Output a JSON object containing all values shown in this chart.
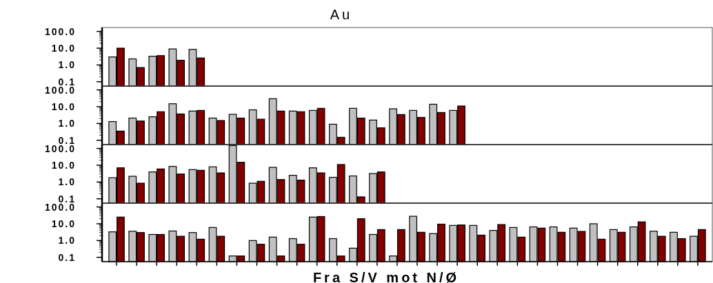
{
  "chart_data": [
    {
      "type": "bar",
      "title": "Au",
      "log": true,
      "tick_labels": "y",
      "ylim": [
        0.055,
        170
      ],
      "yticks": [
        {
          "value": 0.1,
          "label": "0.1"
        },
        {
          "value": 1,
          "label": "1.0"
        },
        {
          "value": 10,
          "label": "10.0"
        },
        {
          "value": 100,
          "label": "100.0"
        }
      ],
      "categories": [
        null,
        null,
        null,
        null,
        null,
        null,
        null,
        null,
        null,
        null,
        null,
        null,
        null,
        null,
        null,
        null,
        null,
        null,
        null,
        null,
        null,
        null,
        null,
        null,
        null,
        null,
        null,
        null,
        null,
        null
      ],
      "series": [
        {
          "color": "#c0c0c0",
          "values": [
            3,
            2.3,
            3.3,
            9,
            8.5,
            null,
            null,
            null,
            null,
            null,
            null,
            null,
            null,
            null,
            null,
            null,
            null,
            null,
            null,
            null,
            null,
            null,
            null,
            null,
            null,
            null,
            null,
            null,
            null,
            null
          ]
        },
        {
          "color": "#800000",
          "values": [
            10,
            0.7,
            3.6,
            1.9,
            2.6,
            null,
            null,
            null,
            null,
            null,
            null,
            null,
            null,
            null,
            null,
            null,
            null,
            null,
            null,
            null,
            null,
            null,
            null,
            null,
            null,
            null,
            null,
            null,
            null,
            null
          ]
        }
      ]
    },
    {
      "type": "bar",
      "log": true,
      "tick_labels": "y",
      "ylim": [
        0.055,
        170
      ],
      "yticks": [
        {
          "value": 0.1,
          "label": "0.1"
        },
        {
          "value": 1,
          "label": "1.0"
        },
        {
          "value": 10,
          "label": "10.0"
        },
        {
          "value": 100,
          "label": "100.0"
        }
      ],
      "categories": [
        null,
        null,
        null,
        null,
        null,
        null,
        null,
        null,
        null,
        null,
        null,
        null,
        null,
        null,
        null,
        null,
        null,
        null,
        null,
        null,
        null,
        null,
        null,
        null,
        null,
        null,
        null,
        null,
        null,
        null
      ],
      "series": [
        {
          "color": "#c0c0c0",
          "values": [
            1.3,
            2.1,
            2.5,
            15,
            5.5,
            2.1,
            3.5,
            6.5,
            30,
            5.5,
            6,
            0.9,
            8,
            1.6,
            7.5,
            6,
            14,
            6,
            null,
            null,
            null,
            null,
            null,
            null,
            null,
            null,
            null,
            null,
            null,
            null
          ]
        },
        {
          "color": "#800000",
          "values": [
            0.35,
            1.4,
            5,
            3.7,
            6,
            1.5,
            2.1,
            1.8,
            5.5,
            5,
            8,
            0.15,
            2.1,
            0.55,
            3.4,
            2.3,
            4.5,
            11,
            null,
            null,
            null,
            null,
            null,
            null,
            null,
            null,
            null,
            null,
            null,
            null
          ]
        }
      ]
    },
    {
      "type": "bar",
      "log": true,
      "tick_labels": "y",
      "ylim": [
        0.055,
        170
      ],
      "yticks": [
        {
          "value": 0.1,
          "label": "0.1"
        },
        {
          "value": 1,
          "label": "1.0"
        },
        {
          "value": 10,
          "label": "10.0"
        },
        {
          "value": 100,
          "label": "100.0"
        }
      ],
      "categories": [
        null,
        null,
        null,
        null,
        null,
        null,
        null,
        null,
        null,
        null,
        null,
        null,
        null,
        null,
        null,
        null,
        null,
        null,
        null,
        null,
        null,
        null,
        null,
        null,
        null,
        null,
        null,
        null,
        null,
        null
      ],
      "series": [
        {
          "color": "#c0c0c0",
          "values": [
            1.8,
            2.2,
            4,
            8.5,
            5.5,
            8,
            150,
            0.85,
            7.5,
            2.5,
            7,
            1.9,
            2.3,
            3.2,
            null,
            null,
            null,
            null,
            null,
            null,
            null,
            null,
            null,
            null,
            null,
            null,
            null,
            null,
            null,
            null
          ]
        },
        {
          "color": "#800000",
          "values": [
            7,
            0.85,
            6,
            3,
            5,
            3.5,
            15,
            1.1,
            1.4,
            1.3,
            3.5,
            11,
            0.13,
            4,
            null,
            null,
            null,
            null,
            null,
            null,
            null,
            null,
            null,
            null,
            null,
            null,
            null,
            null,
            null,
            null
          ]
        }
      ]
    },
    {
      "type": "bar",
      "xlabel": "Fra S/V mot N/Ø",
      "log": true,
      "tick_labels": "y",
      "ylim": [
        0.055,
        170
      ],
      "yticks": [
        {
          "value": 0.1,
          "label": "0.1"
        },
        {
          "value": 1,
          "label": "1.0"
        },
        {
          "value": 10,
          "label": "10.0"
        },
        {
          "value": 100,
          "label": "100.0"
        }
      ],
      "categories": [
        null,
        null,
        null,
        null,
        null,
        null,
        null,
        null,
        null,
        null,
        null,
        null,
        null,
        null,
        null,
        null,
        null,
        null,
        null,
        null,
        null,
        null,
        null,
        null,
        null,
        null,
        null,
        null,
        null,
        null
      ],
      "series": [
        {
          "color": "#c0c0c0",
          "values": [
            3.3,
            3.6,
            2.3,
            3.7,
            3,
            6,
            0.12,
            1,
            1.6,
            1.3,
            25,
            1.3,
            0.35,
            2.3,
            0.12,
            28,
            2.6,
            8,
            8,
            4,
            6,
            6.5,
            6.5,
            5.5,
            10,
            4.5,
            6.5,
            3.6,
            3.1,
            1.8
          ]
        },
        {
          "color": "#800000",
          "values": [
            25,
            3,
            2.3,
            1.8,
            1.2,
            1.8,
            0.12,
            0.6,
            0.12,
            0.6,
            27,
            0.12,
            20,
            4.5,
            4.5,
            3.1,
            9.5,
            8.5,
            2.1,
            9,
            1.6,
            5.5,
            3.1,
            3.5,
            1.2,
            3.1,
            13,
            1.8,
            1.3,
            4.5
          ]
        }
      ]
    }
  ]
}
